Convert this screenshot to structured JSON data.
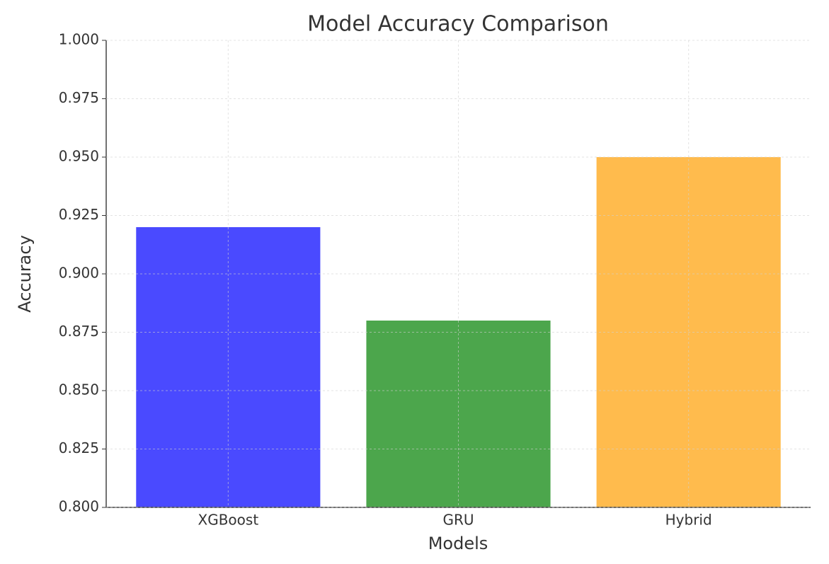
{
  "chart_data": {
    "type": "bar",
    "title": "Model Accuracy Comparison",
    "x_label": "Models",
    "y_label": "Accuracy",
    "categories": [
      "XGBoost",
      "GRU",
      "Hybrid"
    ],
    "values": [
      0.92,
      0.88,
      0.95
    ],
    "colors": [
      "#4a4aff",
      "#4ca64c",
      "#ffbb4d"
    ],
    "ylim": [
      0.8,
      1.0
    ],
    "yticks": [
      {
        "value": 0.8,
        "label": "0.800"
      },
      0.825,
      {
        "value": 0.85,
        "label": "0.850"
      },
      0.875,
      {
        "value": 0.9,
        "label": "0.900"
      },
      0.925,
      {
        "value": 0.95,
        "label": "0.950"
      },
      0.975,
      {
        "value": 1.0,
        "label": "1.000"
      }
    ],
    "grid": true
  }
}
